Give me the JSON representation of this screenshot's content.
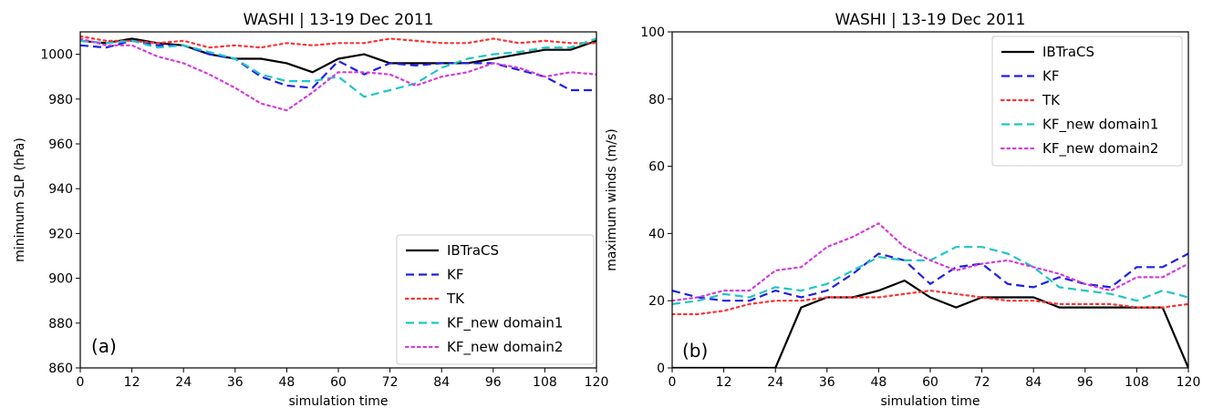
{
  "chart_data": [
    {
      "type": "line",
      "panel_label": "(a)",
      "title": "WASHI | 13-19 Dec 2011",
      "xlabel": "simulation time",
      "ylabel": "minimum SLP (hPa)",
      "xlim": [
        0,
        120
      ],
      "ylim": [
        860,
        1010
      ],
      "xticks": [
        0,
        12,
        24,
        36,
        48,
        60,
        72,
        84,
        96,
        108,
        120
      ],
      "yticks": [
        860,
        880,
        900,
        920,
        940,
        960,
        980,
        1000
      ],
      "legend_position": "lower-right",
      "series": [
        {
          "name": "IBTraCS",
          "color": "#000000",
          "dash": "solid",
          "x": [
            0,
            6,
            12,
            18,
            24,
            30,
            36,
            42,
            48,
            54,
            60,
            66,
            72,
            78,
            84,
            90,
            96,
            102,
            108,
            114,
            120
          ],
          "y": [
            1006,
            1005,
            1007,
            1005,
            1004,
            1000,
            998,
            998,
            996,
            992,
            998,
            1000,
            996,
            996,
            996,
            996,
            998,
            1000,
            1002,
            1002,
            1006
          ]
        },
        {
          "name": "KF",
          "color": "#1f1fe6",
          "dash": "dashed",
          "x": [
            0,
            6,
            12,
            18,
            24,
            30,
            36,
            42,
            48,
            54,
            60,
            66,
            72,
            78,
            84,
            90,
            96,
            102,
            108,
            114,
            120
          ],
          "y": [
            1004,
            1003,
            1006,
            1004,
            1004,
            1000,
            998,
            990,
            986,
            985,
            997,
            991,
            996,
            995,
            996,
            996,
            996,
            993,
            990,
            984,
            984
          ]
        },
        {
          "name": "TK",
          "color": "#ff3030",
          "dash": "dotted",
          "x": [
            0,
            6,
            12,
            18,
            24,
            30,
            36,
            42,
            48,
            54,
            60,
            66,
            72,
            78,
            84,
            90,
            96,
            102,
            108,
            114,
            120
          ],
          "y": [
            1008,
            1006,
            1006,
            1005,
            1006,
            1003,
            1004,
            1003,
            1005,
            1004,
            1005,
            1005,
            1007,
            1006,
            1005,
            1005,
            1007,
            1005,
            1006,
            1005,
            1005
          ]
        },
        {
          "name": "KF_new domain1",
          "color": "#1ec6c6",
          "dash": "dashed",
          "x": [
            0,
            6,
            12,
            18,
            24,
            30,
            36,
            42,
            48,
            54,
            60,
            66,
            72,
            78,
            84,
            90,
            96,
            102,
            108,
            114,
            120
          ],
          "y": [
            1006,
            1005,
            1006,
            1003,
            1004,
            1001,
            998,
            991,
            988,
            988,
            990,
            981,
            984,
            987,
            994,
            998,
            1000,
            1001,
            1003,
            1003,
            1007
          ]
        },
        {
          "name": "KF_new domain2",
          "color": "#d63adf",
          "dash": "dotted",
          "x": [
            0,
            6,
            12,
            18,
            24,
            30,
            36,
            42,
            48,
            54,
            60,
            66,
            72,
            78,
            84,
            90,
            96,
            102,
            108,
            114,
            120
          ],
          "y": [
            1007,
            1004,
            1004,
            999,
            996,
            991,
            985,
            978,
            975,
            983,
            992,
            992,
            991,
            986,
            990,
            992,
            996,
            994,
            990,
            992,
            991
          ]
        }
      ]
    },
    {
      "type": "line",
      "panel_label": "(b)",
      "title": "WASHI | 13-19 Dec 2011",
      "xlabel": "simulation time",
      "ylabel": "maximum winds (m/s)",
      "xlim": [
        0,
        120
      ],
      "ylim": [
        0,
        100
      ],
      "xticks": [
        0,
        12,
        24,
        36,
        48,
        60,
        72,
        84,
        96,
        108,
        120
      ],
      "yticks": [
        0,
        20,
        40,
        60,
        80,
        100
      ],
      "legend_position": "upper-right",
      "series": [
        {
          "name": "IBTraCS",
          "color": "#000000",
          "dash": "solid",
          "x": [
            0,
            6,
            12,
            18,
            24,
            30,
            36,
            42,
            48,
            54,
            60,
            66,
            72,
            78,
            84,
            90,
            96,
            102,
            108,
            114,
            120
          ],
          "y": [
            0,
            0,
            0,
            0,
            0,
            18,
            21,
            21,
            23,
            26,
            21,
            18,
            21,
            21,
            21,
            18,
            18,
            18,
            18,
            18,
            0
          ]
        },
        {
          "name": "KF",
          "color": "#1f1fe6",
          "dash": "dashed",
          "x": [
            0,
            6,
            12,
            18,
            24,
            30,
            36,
            42,
            48,
            54,
            60,
            66,
            72,
            78,
            84,
            90,
            96,
            102,
            108,
            114,
            120
          ],
          "y": [
            23,
            21,
            20,
            20,
            23,
            21,
            23,
            28,
            34,
            32,
            25,
            30,
            31,
            25,
            24,
            27,
            25,
            24,
            30,
            30,
            34
          ]
        },
        {
          "name": "TK",
          "color": "#ff3030",
          "dash": "dotted",
          "x": [
            0,
            6,
            12,
            18,
            24,
            30,
            36,
            42,
            48,
            54,
            60,
            66,
            72,
            78,
            84,
            90,
            96,
            102,
            108,
            114,
            120
          ],
          "y": [
            16,
            16,
            17,
            19,
            20,
            20,
            21,
            21,
            21,
            22,
            23,
            22,
            21,
            20,
            20,
            19,
            19,
            19,
            18,
            18,
            19
          ]
        },
        {
          "name": "KF_new domain1",
          "color": "#1ec6c6",
          "dash": "dashed",
          "x": [
            0,
            6,
            12,
            18,
            24,
            30,
            36,
            42,
            48,
            54,
            60,
            66,
            72,
            78,
            84,
            90,
            96,
            102,
            108,
            114,
            120
          ],
          "y": [
            19,
            20,
            22,
            21,
            24,
            23,
            25,
            29,
            33,
            32,
            32,
            36,
            36,
            34,
            30,
            24,
            23,
            22,
            20,
            23,
            21
          ]
        },
        {
          "name": "KF_new domain2",
          "color": "#d63adf",
          "dash": "dotted",
          "x": [
            0,
            6,
            12,
            18,
            24,
            30,
            36,
            42,
            48,
            54,
            60,
            66,
            72,
            78,
            84,
            90,
            96,
            102,
            108,
            114,
            120
          ],
          "y": [
            20,
            21,
            23,
            23,
            29,
            30,
            36,
            39,
            43,
            36,
            32,
            29,
            31,
            32,
            30,
            28,
            25,
            23,
            27,
            27,
            31
          ]
        }
      ]
    }
  ]
}
